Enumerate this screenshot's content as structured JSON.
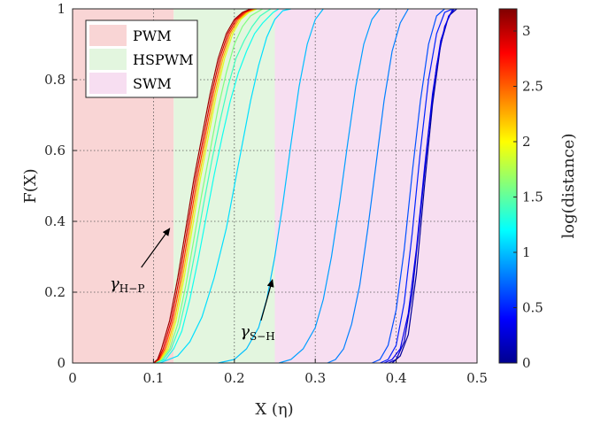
{
  "chart_data": {
    "type": "line",
    "xlabel": "X (η)",
    "ylabel": "F(X)",
    "xlim": [
      0,
      0.5
    ],
    "ylim": [
      0,
      1
    ],
    "xticks": [
      0,
      0.1,
      0.2,
      0.3,
      0.4,
      0.5
    ],
    "yticks": [
      0,
      0.2,
      0.4,
      0.6,
      0.8,
      1
    ],
    "xtick_labels": [
      "0",
      "0.1",
      "0.2",
      "0.3",
      "0.4",
      "0.5"
    ],
    "ytick_labels": [
      "0",
      "0.2",
      "0.4",
      "0.6",
      "0.8",
      "1"
    ],
    "grid": true,
    "regions": [
      {
        "label": "PWM",
        "x0": 0.0,
        "x1": 0.125,
        "color": "#f9d5d5"
      },
      {
        "label": "HSPWM",
        "x0": 0.125,
        "x1": 0.25,
        "color": "#e3f6df"
      },
      {
        "label": "SWM",
        "x0": 0.25,
        "x1": 0.5,
        "color": "#f7def1"
      }
    ],
    "legend_position": "top-left",
    "colorbar": {
      "label": "log(distance)",
      "min": 0,
      "max": 3.2,
      "ticks": [
        0,
        0.5,
        1,
        1.5,
        2,
        2.5,
        3
      ],
      "tick_labels": [
        "0",
        "0.5",
        "1",
        "1.5",
        "2",
        "2.5",
        "3"
      ],
      "colormap": "jet"
    },
    "annotations": [
      {
        "symbol": "γ",
        "subscript": "H−P",
        "text_x": 0.046,
        "text_y": 0.21,
        "arrow_from": [
          0.085,
          0.27
        ],
        "arrow_to": [
          0.12,
          0.38
        ]
      },
      {
        "symbol": "γ",
        "subscript": "S−H",
        "text_x": 0.207,
        "text_y": 0.075,
        "arrow_from": [
          0.233,
          0.12
        ],
        "arrow_to": [
          0.247,
          0.235
        ]
      }
    ],
    "series": [
      {
        "color_value": 3.1,
        "points": [
          [
            0.1,
            0
          ],
          [
            0.105,
            0.01
          ],
          [
            0.11,
            0.04
          ],
          [
            0.12,
            0.12
          ],
          [
            0.13,
            0.24
          ],
          [
            0.14,
            0.38
          ],
          [
            0.15,
            0.52
          ],
          [
            0.16,
            0.64
          ],
          [
            0.17,
            0.76
          ],
          [
            0.18,
            0.86
          ],
          [
            0.19,
            0.93
          ],
          [
            0.2,
            0.97
          ],
          [
            0.21,
            0.99
          ],
          [
            0.22,
            1.0
          ]
        ]
      },
      {
        "color_value": 2.9,
        "points": [
          [
            0.1,
            0
          ],
          [
            0.106,
            0.01
          ],
          [
            0.112,
            0.04
          ],
          [
            0.122,
            0.12
          ],
          [
            0.132,
            0.24
          ],
          [
            0.142,
            0.38
          ],
          [
            0.152,
            0.52
          ],
          [
            0.162,
            0.64
          ],
          [
            0.172,
            0.76
          ],
          [
            0.182,
            0.86
          ],
          [
            0.192,
            0.93
          ],
          [
            0.202,
            0.97
          ],
          [
            0.212,
            0.99
          ],
          [
            0.222,
            1.0
          ]
        ]
      },
      {
        "color_value": 2.6,
        "points": [
          [
            0.1,
            0
          ],
          [
            0.107,
            0.01
          ],
          [
            0.114,
            0.04
          ],
          [
            0.124,
            0.12
          ],
          [
            0.134,
            0.24
          ],
          [
            0.144,
            0.38
          ],
          [
            0.154,
            0.52
          ],
          [
            0.164,
            0.64
          ],
          [
            0.174,
            0.76
          ],
          [
            0.184,
            0.86
          ],
          [
            0.194,
            0.93
          ],
          [
            0.204,
            0.97
          ],
          [
            0.214,
            0.99
          ],
          [
            0.224,
            1.0
          ]
        ]
      },
      {
        "color_value": 2.2,
        "points": [
          [
            0.1,
            0
          ],
          [
            0.108,
            0.01
          ],
          [
            0.116,
            0.04
          ],
          [
            0.126,
            0.12
          ],
          [
            0.136,
            0.24
          ],
          [
            0.146,
            0.38
          ],
          [
            0.156,
            0.52
          ],
          [
            0.166,
            0.64
          ],
          [
            0.176,
            0.76
          ],
          [
            0.186,
            0.86
          ],
          [
            0.196,
            0.93
          ],
          [
            0.206,
            0.97
          ],
          [
            0.216,
            0.99
          ],
          [
            0.226,
            1.0
          ]
        ]
      },
      {
        "color_value": 1.9,
        "points": [
          [
            0.1,
            0
          ],
          [
            0.109,
            0.01
          ],
          [
            0.118,
            0.04
          ],
          [
            0.128,
            0.12
          ],
          [
            0.138,
            0.24
          ],
          [
            0.148,
            0.38
          ],
          [
            0.158,
            0.52
          ],
          [
            0.168,
            0.64
          ],
          [
            0.178,
            0.76
          ],
          [
            0.188,
            0.86
          ],
          [
            0.198,
            0.93
          ],
          [
            0.208,
            0.97
          ],
          [
            0.218,
            0.99
          ],
          [
            0.228,
            1.0
          ]
        ]
      },
      {
        "color_value": 1.6,
        "points": [
          [
            0.1,
            0
          ],
          [
            0.11,
            0.01
          ],
          [
            0.12,
            0.04
          ],
          [
            0.13,
            0.11
          ],
          [
            0.14,
            0.22
          ],
          [
            0.15,
            0.35
          ],
          [
            0.16,
            0.48
          ],
          [
            0.17,
            0.6
          ],
          [
            0.18,
            0.72
          ],
          [
            0.19,
            0.82
          ],
          [
            0.2,
            0.9
          ],
          [
            0.21,
            0.95
          ],
          [
            0.22,
            0.98
          ],
          [
            0.235,
            1.0
          ]
        ]
      },
      {
        "color_value": 1.4,
        "points": [
          [
            0.1,
            0
          ],
          [
            0.112,
            0.01
          ],
          [
            0.122,
            0.04
          ],
          [
            0.132,
            0.1
          ],
          [
            0.142,
            0.2
          ],
          [
            0.152,
            0.32
          ],
          [
            0.162,
            0.45
          ],
          [
            0.172,
            0.57
          ],
          [
            0.182,
            0.68
          ],
          [
            0.192,
            0.78
          ],
          [
            0.202,
            0.86
          ],
          [
            0.212,
            0.91
          ],
          [
            0.222,
            0.95
          ],
          [
            0.232,
            0.98
          ],
          [
            0.245,
            1.0
          ]
        ]
      },
      {
        "color_value": 1.25,
        "points": [
          [
            0.102,
            0
          ],
          [
            0.115,
            0.01
          ],
          [
            0.125,
            0.04
          ],
          [
            0.135,
            0.09
          ],
          [
            0.145,
            0.18
          ],
          [
            0.155,
            0.29
          ],
          [
            0.165,
            0.41
          ],
          [
            0.175,
            0.53
          ],
          [
            0.185,
            0.64
          ],
          [
            0.195,
            0.74
          ],
          [
            0.205,
            0.82
          ],
          [
            0.215,
            0.88
          ],
          [
            0.225,
            0.93
          ],
          [
            0.235,
            0.96
          ],
          [
            0.248,
            0.99
          ],
          [
            0.255,
            1.0
          ]
        ]
      },
      {
        "color_value": 1.1,
        "points": [
          [
            0.108,
            0
          ],
          [
            0.13,
            0.02
          ],
          [
            0.145,
            0.06
          ],
          [
            0.16,
            0.13
          ],
          [
            0.175,
            0.24
          ],
          [
            0.19,
            0.38
          ],
          [
            0.2,
            0.5
          ],
          [
            0.21,
            0.62
          ],
          [
            0.22,
            0.74
          ],
          [
            0.23,
            0.84
          ],
          [
            0.24,
            0.92
          ],
          [
            0.25,
            0.97
          ],
          [
            0.26,
            0.995
          ],
          [
            0.27,
            1.0
          ]
        ]
      },
      {
        "color_value": 1.0,
        "points": [
          [
            0.18,
            0
          ],
          [
            0.2,
            0.01
          ],
          [
            0.215,
            0.04
          ],
          [
            0.23,
            0.1
          ],
          [
            0.24,
            0.18
          ],
          [
            0.25,
            0.3
          ],
          [
            0.26,
            0.45
          ],
          [
            0.27,
            0.62
          ],
          [
            0.28,
            0.78
          ],
          [
            0.29,
            0.9
          ],
          [
            0.3,
            0.97
          ],
          [
            0.31,
            1.0
          ]
        ]
      },
      {
        "color_value": 0.9,
        "points": [
          [
            0.255,
            0
          ],
          [
            0.27,
            0.01
          ],
          [
            0.285,
            0.04
          ],
          [
            0.3,
            0.1
          ],
          [
            0.31,
            0.18
          ],
          [
            0.32,
            0.3
          ],
          [
            0.33,
            0.45
          ],
          [
            0.34,
            0.62
          ],
          [
            0.35,
            0.78
          ],
          [
            0.36,
            0.9
          ],
          [
            0.37,
            0.97
          ],
          [
            0.38,
            1.0
          ]
        ]
      },
      {
        "color_value": 0.8,
        "points": [
          [
            0.315,
            0
          ],
          [
            0.325,
            0.01
          ],
          [
            0.335,
            0.04
          ],
          [
            0.345,
            0.11
          ],
          [
            0.355,
            0.22
          ],
          [
            0.365,
            0.38
          ],
          [
            0.375,
            0.56
          ],
          [
            0.385,
            0.74
          ],
          [
            0.395,
            0.88
          ],
          [
            0.405,
            0.96
          ],
          [
            0.415,
            1.0
          ]
        ]
      },
      {
        "color_value": 0.65,
        "points": [
          [
            0.37,
            0
          ],
          [
            0.38,
            0.01
          ],
          [
            0.39,
            0.05
          ],
          [
            0.4,
            0.15
          ],
          [
            0.41,
            0.32
          ],
          [
            0.42,
            0.54
          ],
          [
            0.43,
            0.74
          ],
          [
            0.44,
            0.9
          ],
          [
            0.45,
            0.98
          ],
          [
            0.46,
            1.0
          ]
        ]
      },
      {
        "color_value": 0.5,
        "points": [
          [
            0.38,
            0
          ],
          [
            0.39,
            0.01
          ],
          [
            0.4,
            0.05
          ],
          [
            0.41,
            0.17
          ],
          [
            0.42,
            0.37
          ],
          [
            0.43,
            0.6
          ],
          [
            0.44,
            0.8
          ],
          [
            0.45,
            0.93
          ],
          [
            0.46,
            0.99
          ],
          [
            0.47,
            1.0
          ]
        ]
      },
      {
        "color_value": 0.35,
        "points": [
          [
            0.385,
            0
          ],
          [
            0.395,
            0.01
          ],
          [
            0.405,
            0.04
          ],
          [
            0.415,
            0.14
          ],
          [
            0.425,
            0.32
          ],
          [
            0.435,
            0.55
          ],
          [
            0.445,
            0.76
          ],
          [
            0.455,
            0.91
          ],
          [
            0.465,
            0.98
          ],
          [
            0.472,
            1.0
          ]
        ]
      },
      {
        "color_value": 0.2,
        "points": [
          [
            0.39,
            0
          ],
          [
            0.4,
            0.01
          ],
          [
            0.41,
            0.06
          ],
          [
            0.42,
            0.2
          ],
          [
            0.43,
            0.42
          ],
          [
            0.44,
            0.65
          ],
          [
            0.45,
            0.84
          ],
          [
            0.46,
            0.95
          ],
          [
            0.47,
            1.0
          ]
        ]
      },
      {
        "color_value": 0.08,
        "points": [
          [
            0.395,
            0
          ],
          [
            0.405,
            0.02
          ],
          [
            0.415,
            0.08
          ],
          [
            0.425,
            0.25
          ],
          [
            0.435,
            0.5
          ],
          [
            0.445,
            0.73
          ],
          [
            0.455,
            0.9
          ],
          [
            0.465,
            0.98
          ],
          [
            0.475,
            1.0
          ]
        ]
      }
    ]
  }
}
